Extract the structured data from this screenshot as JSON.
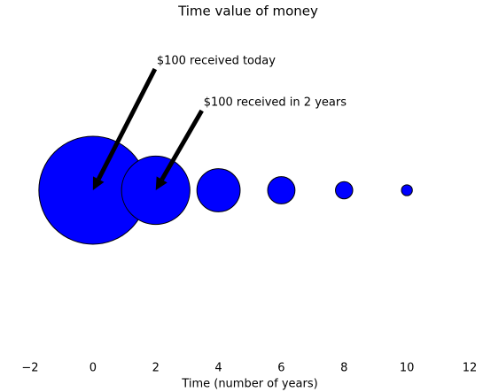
{
  "chart_data": {
    "type": "scatter",
    "title": "Time value of money",
    "xlabel": "Time (number of years)",
    "x": [
      0,
      2,
      4,
      6,
      8,
      10
    ],
    "values": [
      0,
      0,
      0,
      0,
      0,
      0
    ],
    "sizes": [
      100,
      40,
      16,
      6.4,
      2.56,
      1.02
    ],
    "color": "#0000ff",
    "edgecolor": "#000000",
    "xlim": [
      -2,
      12
    ],
    "xticks": [
      {
        "value": -2,
        "label": "−2"
      },
      0,
      2,
      4,
      6,
      8,
      10,
      12
    ],
    "ylim": [
      -1,
      1
    ],
    "annotations": [
      {
        "text": "$100 received today",
        "xy": [
          0,
          0
        ]
      },
      {
        "text": "$100 received in 2 years",
        "xy": [
          2,
          0
        ]
      }
    ]
  }
}
